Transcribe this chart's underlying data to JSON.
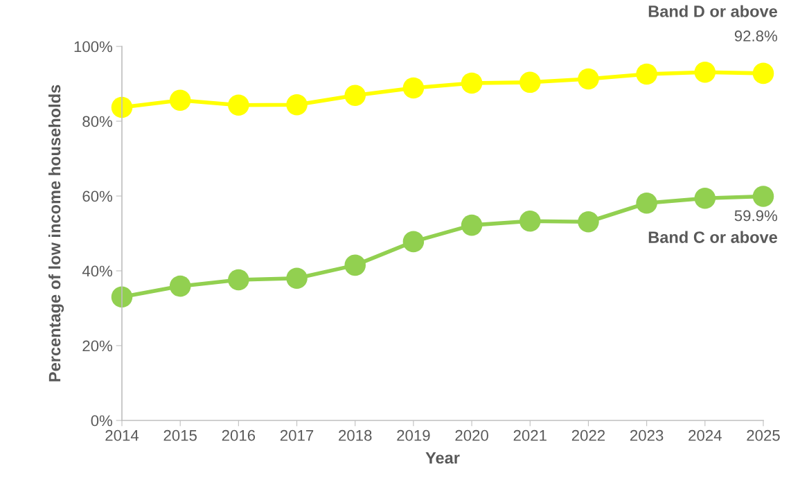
{
  "chart_data": {
    "type": "line",
    "xlabel": "Year",
    "ylabel": "Percentage of low income households",
    "categories": [
      "2014",
      "2015",
      "2016",
      "2017",
      "2018",
      "2019",
      "2020",
      "2021",
      "2022",
      "2023",
      "2024",
      "2025"
    ],
    "series": [
      {
        "name": "Band D or above",
        "color": "#ffff00",
        "values": [
          83.7,
          85.6,
          84.3,
          84.4,
          86.9,
          88.9,
          90.2,
          90.4,
          91.3,
          92.6,
          93.1,
          92.8
        ],
        "value_labels": [
          null,
          null,
          null,
          null,
          null,
          null,
          null,
          null,
          null,
          null,
          null,
          "92.8%"
        ]
      },
      {
        "name": "Band C or above",
        "color": "#92d050",
        "values": [
          33.0,
          35.9,
          37.6,
          38.0,
          41.5,
          47.8,
          52.2,
          53.3,
          53.1,
          58.1,
          59.4,
          59.9
        ],
        "value_labels": [
          null,
          null,
          null,
          null,
          null,
          null,
          null,
          null,
          null,
          null,
          null,
          "59.9%"
        ]
      }
    ],
    "ylim": [
      0,
      100
    ],
    "yticks": [
      {
        "value": 0,
        "label": "0%"
      },
      {
        "value": 20,
        "label": "20%"
      },
      {
        "value": 40,
        "label": "40%"
      },
      {
        "value": 60,
        "label": "60%"
      },
      {
        "value": 80,
        "label": "80%"
      },
      {
        "value": 100,
        "label": "100%"
      }
    ],
    "grid": false,
    "legend": false,
    "marker": "circle",
    "line_style": "solid"
  }
}
